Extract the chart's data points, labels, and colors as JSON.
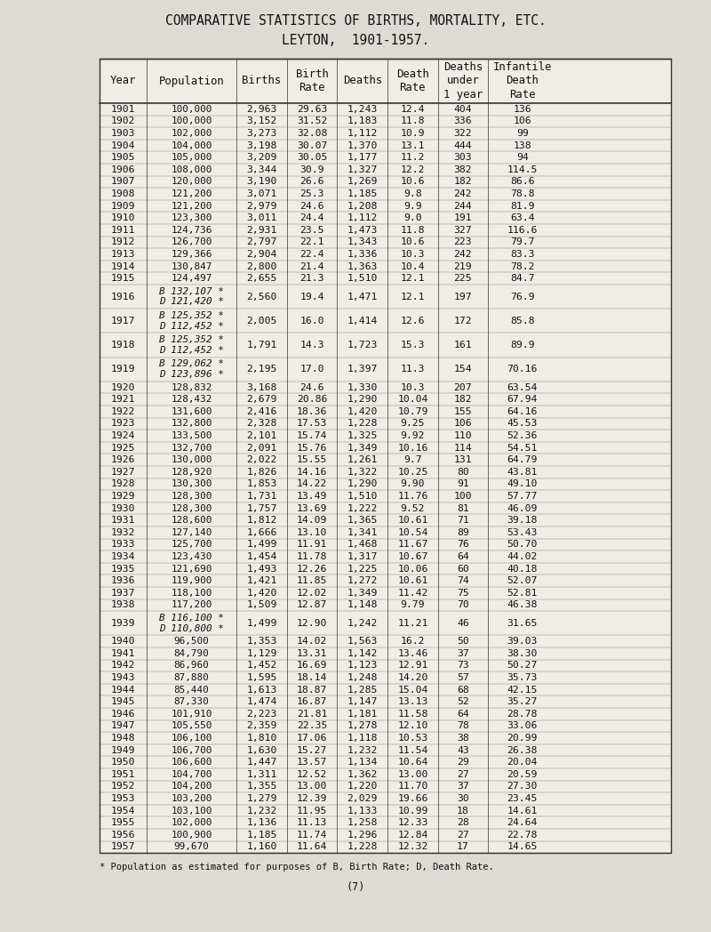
{
  "title1": "COMPARATIVE STATISTICS OF BIRTHS, MORTALITY, ETC.",
  "title2": "LEYTON,  1901-1957.",
  "headers": [
    "Year",
    "Population",
    "Births",
    "Birth\nRate",
    "Deaths",
    "Death\nRate",
    "Deaths\nunder\n1 year",
    "Infantile\nDeath\nRate"
  ],
  "footer": "* Population as estimated for purposes of B, Birth Rate; D, Death Rate.",
  "page_num": "(7)",
  "rows": [
    [
      "1901",
      "100,000",
      "2,963",
      "29.63",
      "1,243",
      "12.4",
      "404",
      "136"
    ],
    [
      "1902",
      "100,000",
      "3,152",
      "31.52",
      "1,183",
      "11.8",
      "336",
      "106"
    ],
    [
      "1903",
      "102,000",
      "3,273",
      "32.08",
      "1,112",
      "10.9",
      "322",
      "99"
    ],
    [
      "1904",
      "104,000",
      "3,198",
      "30.07",
      "1,370",
      "13.1",
      "444",
      "138"
    ],
    [
      "1905",
      "105,000",
      "3,209",
      "30.05",
      "1,177",
      "11.2",
      "303",
      "94"
    ],
    [
      "1906",
      "108,000",
      "3,344",
      "30.9",
      "1,327",
      "12.2",
      "382",
      "114.5"
    ],
    [
      "1907",
      "120,000",
      "3,190",
      "26.6",
      "1,269",
      "10.6",
      "182",
      "86.6"
    ],
    [
      "1908",
      "121,200",
      "3,071",
      "25.3",
      "1,185",
      "9.8",
      "242",
      "78.8"
    ],
    [
      "1909",
      "121,200",
      "2,979",
      "24.6",
      "1,208",
      "9.9",
      "244",
      "81.9"
    ],
    [
      "1910",
      "123,300",
      "3,011",
      "24.4",
      "1,112",
      "9.0",
      "191",
      "63.4"
    ],
    [
      "1911",
      "124,736",
      "2,931",
      "23.5",
      "1,473",
      "11.8",
      "327",
      "116.6"
    ],
    [
      "1912",
      "126,700",
      "2,797",
      "22.1",
      "1,343",
      "10.6",
      "223",
      "79.7"
    ],
    [
      "1913",
      "129,366",
      "2,904",
      "22.4",
      "1,336",
      "10.3",
      "242",
      "83.3"
    ],
    [
      "1914",
      "130,847",
      "2,800",
      "21.4",
      "1,363",
      "10.4",
      "219",
      "78.2"
    ],
    [
      "1915",
      "124,497",
      "2,655",
      "21.3",
      "1,510",
      "12.1",
      "225",
      "84.7"
    ],
    [
      "1916_B",
      "B 132,107 *\nD 121,420 *",
      "2,560",
      "19.4",
      "1,471",
      "12.1",
      "197",
      "76.9"
    ],
    [
      "1917_B",
      "B 125,352 *\nD 112,452 *",
      "2,005",
      "16.0",
      "1,414",
      "12.6",
      "172",
      "85.8"
    ],
    [
      "1918_B",
      "B 125,352 *\nD 112,452 *",
      "1,791",
      "14.3",
      "1,723",
      "15.3",
      "161",
      "89.9"
    ],
    [
      "1919_B",
      "B 129,062 *\nD 123,896 *",
      "2,195",
      "17.0",
      "1,397",
      "11.3",
      "154",
      "70.16"
    ],
    [
      "1920",
      "128,832",
      "3,168",
      "24.6",
      "1,330",
      "10.3",
      "207",
      "63.54"
    ],
    [
      "1921",
      "128,432",
      "2,679",
      "20.86",
      "1,290",
      "10.04",
      "182",
      "67.94"
    ],
    [
      "1922",
      "131,600",
      "2,416",
      "18.36",
      "1,420",
      "10.79",
      "155",
      "64.16"
    ],
    [
      "1923",
      "132,800",
      "2,328",
      "17.53",
      "1,228",
      "9.25",
      "106",
      "45.53"
    ],
    [
      "1924",
      "133,500",
      "2,101",
      "15.74",
      "1,325",
      "9.92",
      "110",
      "52.36"
    ],
    [
      "1925",
      "132,700",
      "2,091",
      "15.76",
      "1,349",
      "10.16",
      "114",
      "54.51"
    ],
    [
      "1926",
      "130,000",
      "2,022",
      "15.55",
      "1,261",
      "9.7",
      "131",
      "64.79"
    ],
    [
      "1927",
      "128,920",
      "1,826",
      "14.16",
      "1,322",
      "10.25",
      "80",
      "43.81"
    ],
    [
      "1928",
      "130,300",
      "1,853",
      "14.22",
      "1,290",
      "9.90",
      "91",
      "49.10"
    ],
    [
      "1929",
      "128,300",
      "1,731",
      "13.49",
      "1,510",
      "11.76",
      "100",
      "57.77"
    ],
    [
      "1930",
      "128,300",
      "1,757",
      "13.69",
      "1,222",
      "9.52",
      "81",
      "46.09"
    ],
    [
      "1931",
      "128,600",
      "1,812",
      "14.09",
      "1,365",
      "10.61",
      "71",
      "39.18"
    ],
    [
      "1932",
      "127,140",
      "1,666",
      "13.10",
      "1,341",
      "10.54",
      "89",
      "53.43"
    ],
    [
      "1933",
      "125,700",
      "1,499",
      "11.91",
      "1,468",
      "11.67",
      "76",
      "50.70"
    ],
    [
      "1934",
      "123,430",
      "1,454",
      "11.78",
      "1,317",
      "10.67",
      "64",
      "44.02"
    ],
    [
      "1935",
      "121,690",
      "1,493",
      "12.26",
      "1,225",
      "10.06",
      "60",
      "40.18"
    ],
    [
      "1936",
      "119,900",
      "1,421",
      "11.85",
      "1,272",
      "10.61",
      "74",
      "52.07"
    ],
    [
      "1937",
      "118,100",
      "1,420",
      "12.02",
      "1,349",
      "11.42",
      "75",
      "52.81"
    ],
    [
      "1938",
      "117,200",
      "1,509",
      "12.87",
      "1,148",
      "9.79",
      "70",
      "46.38"
    ],
    [
      "1939_B",
      "B 116,100 *\nD 110,800 *",
      "1,499",
      "12.90",
      "1,242",
      "11.21",
      "46",
      "31.65"
    ],
    [
      "1940",
      "96,500",
      "1,353",
      "14.02",
      "1,563",
      "16.2",
      "50",
      "39.03"
    ],
    [
      "1941",
      "84,790",
      "1,129",
      "13.31",
      "1,142",
      "13.46",
      "37",
      "38.30"
    ],
    [
      "1942",
      "86,960",
      "1,452",
      "16.69",
      "1,123",
      "12.91",
      "73",
      "50.27"
    ],
    [
      "1943",
      "87,880",
      "1,595",
      "18.14",
      "1,248",
      "14.20",
      "57",
      "35.73"
    ],
    [
      "1944",
      "85,440",
      "1,613",
      "18.87",
      "1,285",
      "15.04",
      "68",
      "42.15"
    ],
    [
      "1945",
      "87,330",
      "1,474",
      "16.87",
      "1,147",
      "13.13",
      "52",
      "35.27"
    ],
    [
      "1946",
      "101,910",
      "2,223",
      "21.81",
      "1,181",
      "11.58",
      "64",
      "28.78"
    ],
    [
      "1947",
      "105,550",
      "2,359",
      "22.35",
      "1,278",
      "12.10",
      "78",
      "33.06"
    ],
    [
      "1948",
      "106,100",
      "1,810",
      "17.06",
      "1,118",
      "10.53",
      "38",
      "20.99"
    ],
    [
      "1949",
      "106,700",
      "1,630",
      "15.27",
      "1,232",
      "11.54",
      "43",
      "26.38"
    ],
    [
      "1950",
      "106,600",
      "1,447",
      "13.57",
      "1,134",
      "10.64",
      "29",
      "20.04"
    ],
    [
      "1951",
      "104,700",
      "1,311",
      "12.52",
      "1,362",
      "13.00",
      "27",
      "20.59"
    ],
    [
      "1952",
      "104,200",
      "1,355",
      "13.00",
      "1,220",
      "11.70",
      "37",
      "27.30"
    ],
    [
      "1953",
      "103,200",
      "1,279",
      "12.39",
      "2,029",
      "19.66",
      "30",
      "23.45"
    ],
    [
      "1954",
      "103,100",
      "1,232",
      "11.95",
      "1,133",
      "10.99",
      "18",
      "14.61"
    ],
    [
      "1955",
      "102,000",
      "1,136",
      "11.13",
      "1,258",
      "12.33",
      "28",
      "24.64"
    ],
    [
      "1956",
      "100,900",
      "1,185",
      "11.74",
      "1,296",
      "12.84",
      "27",
      "22.78"
    ],
    [
      "1957",
      "99,670",
      "1,160",
      "11.64",
      "1,228",
      "12.32",
      "17",
      "14.65"
    ]
  ],
  "pop_display": [
    "100,000",
    "100,000",
    "102,000",
    "104,000",
    "105,000",
    "108,000",
    "120,000",
    "121,200",
    "121,200",
    "123,300",
    "124,736",
    "126,700",
    "129,366",
    "130,847",
    "124,497",
    "B 132,107 *\nD 121,420 *",
    "B 125,352 *\nD 112,452 *",
    "B 125,352 *\nD 112,452 *",
    "B 129,062 *\nD 123,896 *",
    "128,832",
    "128,432",
    "131,600",
    "132,800",
    "133,500",
    "132,700",
    "130,000",
    "128,920",
    "130,300",
    "128,300",
    "128,300",
    "128,600",
    "127,140",
    "125,700",
    "123,430",
    "121,690",
    "119,900",
    "118,100",
    "117,200",
    "B 116,100 *\nD 110,800 *",
    "96,500",
    "84,790",
    "86,960",
    "87,880",
    "85,440",
    "87,330",
    "101,910",
    "105,550",
    "106,100",
    "106,700",
    "106,600",
    "104,700",
    "104,200",
    "103,200",
    "103,100",
    "102,000",
    "100,900",
    "99,670"
  ],
  "special_years": [
    "1916_B",
    "1917_B",
    "1918_B",
    "1919_B",
    "1939_B"
  ],
  "bg_color": "#dddbd4",
  "table_bg": "#f0ede6",
  "text_color": "#111111",
  "font_size": 8.2,
  "header_font_size": 8.8,
  "title_font_size": 10.5
}
